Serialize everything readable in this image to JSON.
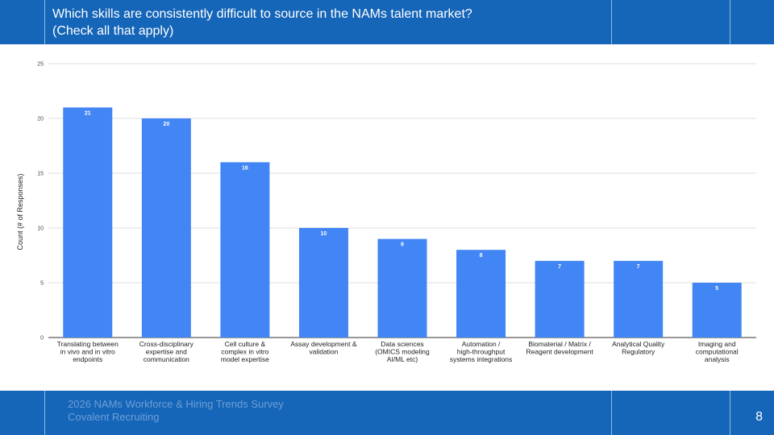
{
  "header": {
    "title_line1": "Which skills are consistently difficult to source in the NAMs talent market?",
    "title_line2": "(Check all that apply)"
  },
  "footer": {
    "line1": "2026 NAMs Workforce & Hiring Trends Survey",
    "line2": "Covalent Recruiting",
    "page_number": "8"
  },
  "colors": {
    "brand_blue": "#1565b8",
    "bar_blue": "#4285f4"
  },
  "chart_data": {
    "type": "bar",
    "ylabel": "Count (# of Responses)",
    "xlabel": "",
    "ylim": [
      0,
      25
    ],
    "yticks": [
      0,
      5,
      10,
      15,
      20,
      25
    ],
    "grid": true,
    "categories": [
      [
        "Translating between",
        "in vivo and in vitro",
        "endpoints"
      ],
      [
        "Cross-disciplinary",
        "expertise and",
        "communication"
      ],
      [
        "Cell culture &",
        "complex in vitro",
        "model expertise"
      ],
      [
        "Assay development &",
        "validation"
      ],
      [
        "Data sciences",
        "(OMICS modeling",
        "AI/ML etc)"
      ],
      [
        "Automation /",
        "high-throughput",
        "systems integrations"
      ],
      [
        "Biomaterial / Matrix /",
        "Reagent development"
      ],
      [
        "Analytical Quality",
        "Regulatory"
      ],
      [
        "Imaging and",
        "computational",
        "analysis"
      ]
    ],
    "values": [
      21,
      20,
      16,
      10,
      9,
      8,
      7,
      7,
      5
    ]
  }
}
